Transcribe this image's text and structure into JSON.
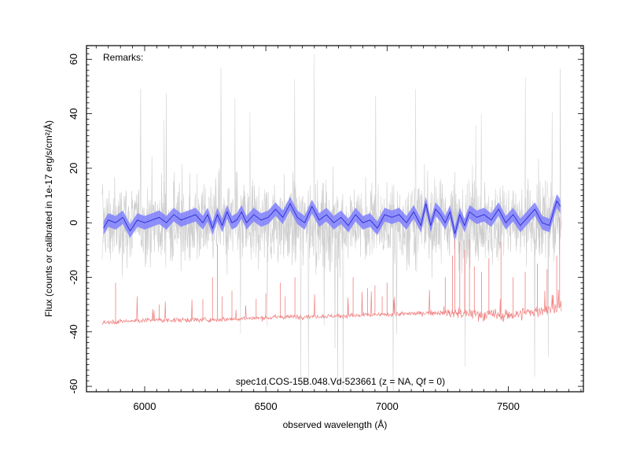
{
  "chart_data": {
    "type": "line",
    "title": "spec1d.COS-15B.048.Vd-523661 (z =   NA, Qf = 0)",
    "remarks": "Remarks:",
    "xlabel": "observed wavelength (Å)",
    "ylabel": "Flux (counts or calibrated in 1e-17 erg/s/cm²/Å)",
    "xlim": [
      5760,
      7810
    ],
    "ylim": [
      -62,
      65
    ],
    "xticks": [
      6000,
      6500,
      7000,
      7500
    ],
    "yticks": [
      -60,
      -40,
      -20,
      0,
      20,
      40,
      60
    ],
    "x_minor_step": 50,
    "y_minor_step": 2,
    "colors": {
      "raw": "#c8c8c8",
      "binned_band": "#8080ff",
      "binned_line": "#2a2ad0",
      "noise": "#f08080"
    },
    "series": [
      {
        "role": "raw_flux",
        "note": "dense unbinned spectrum, scatter roughly -25 to +30, spikes to about ±60",
        "x_range": [
          5825,
          7720
        ],
        "sigma": 11
      },
      {
        "role": "binned_flux",
        "x": [
          5830,
          5850,
          5880,
          5910,
          5940,
          5970,
          6000,
          6030,
          6060,
          6090,
          6120,
          6150,
          6180,
          6210,
          6240,
          6260,
          6280,
          6300,
          6320,
          6340,
          6360,
          6380,
          6400,
          6420,
          6450,
          6480,
          6510,
          6540,
          6570,
          6600,
          6630,
          6660,
          6690,
          6720,
          6750,
          6780,
          6810,
          6840,
          6870,
          6900,
          6930,
          6960,
          6990,
          7020,
          7050,
          7080,
          7110,
          7140,
          7160,
          7180,
          7200,
          7220,
          7240,
          7260,
          7280,
          7300,
          7320,
          7340,
          7370,
          7400,
          7430,
          7460,
          7490,
          7520,
          7550,
          7580,
          7610,
          7640,
          7670,
          7700,
          7715
        ],
        "y": [
          -2,
          1,
          0,
          2,
          -3,
          1,
          0,
          1,
          2,
          0,
          3,
          1,
          2,
          3,
          0,
          3,
          -2,
          3,
          -1,
          4,
          0,
          1,
          4,
          0,
          3,
          1,
          2,
          5,
          2,
          7,
          2,
          0,
          6,
          1,
          3,
          0,
          2,
          -1,
          3,
          0,
          1,
          -2,
          3,
          2,
          3,
          0,
          4,
          -1,
          7,
          -1,
          5,
          3,
          0,
          4,
          -4,
          3,
          -1,
          4,
          2,
          3,
          1,
          5,
          0,
          3,
          -1,
          2,
          5,
          0,
          -1,
          8,
          6
        ],
        "err": 2.5
      },
      {
        "role": "noise",
        "note": "sky/noise spectrum, baseline near -36 rising to -30, emission spikes up to about 0",
        "baseline": [
          [
            5825,
            -36.5
          ],
          [
            6000,
            -35.8
          ],
          [
            6300,
            -35.5
          ],
          [
            6600,
            -34.5
          ],
          [
            6900,
            -34
          ],
          [
            7200,
            -33
          ],
          [
            7500,
            -34
          ],
          [
            7720,
            -31
          ]
        ],
        "spikes": [
          [
            5880,
            -22
          ],
          [
            6060,
            -30
          ],
          [
            6240,
            -28
          ],
          [
            6280,
            -20
          ],
          [
            6300,
            -8
          ],
          [
            6320,
            -27
          ],
          [
            6360,
            -25
          ],
          [
            6460,
            -28
          ],
          [
            6500,
            -26
          ],
          [
            6560,
            -22
          ],
          [
            6580,
            -27
          ],
          [
            6620,
            -20
          ],
          [
            6840,
            -30
          ],
          [
            6860,
            -20
          ],
          [
            6920,
            -24
          ],
          [
            6950,
            -23
          ],
          [
            6980,
            -27
          ],
          [
            7000,
            -22
          ],
          [
            7240,
            -20
          ],
          [
            7270,
            -12
          ],
          [
            7280,
            -5
          ],
          [
            7300,
            -7
          ],
          [
            7320,
            -10
          ],
          [
            7340,
            -6
          ],
          [
            7360,
            -16
          ],
          [
            7390,
            -18
          ],
          [
            7420,
            -13
          ],
          [
            7470,
            -7
          ],
          [
            7520,
            -20
          ],
          [
            7570,
            -18
          ],
          [
            7620,
            -15
          ],
          [
            7660,
            -17
          ],
          [
            7700,
            -12
          ],
          [
            7712,
            2
          ]
        ]
      }
    ]
  }
}
